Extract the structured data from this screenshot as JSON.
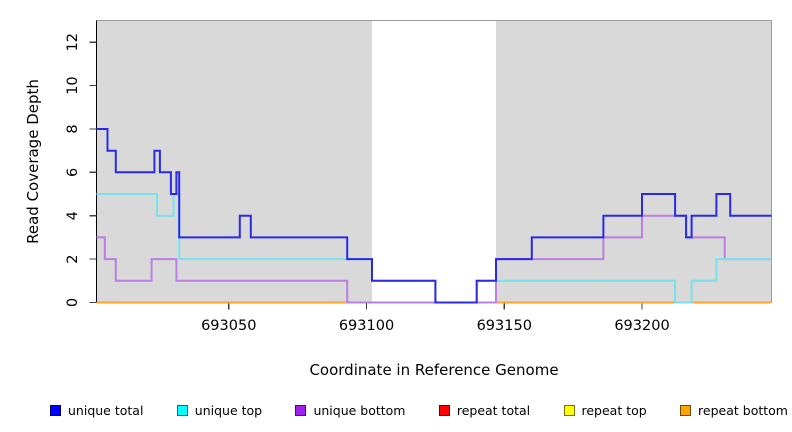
{
  "figure": {
    "title": "",
    "x_axis_label": "Coordinate in Reference Genome",
    "y_axis_label": "Read Coverage Depth"
  },
  "chart_data": {
    "type": "line",
    "subtype": "step",
    "title": "",
    "xlabel": "Coordinate in Reference Genome",
    "ylabel": "Read Coverage Depth",
    "xlim": [
      693002,
      693247
    ],
    "ylim": [
      0,
      13
    ],
    "xticks": [
      693050,
      693100,
      693150,
      693200
    ],
    "yticks": [
      0,
      2,
      4,
      6,
      8,
      10,
      12
    ],
    "grid": false,
    "legend_position": "bottom",
    "plot_background": "#ffffff",
    "shaded_band_color": "#d9d9d9",
    "frame_color": "#9c9c9c",
    "axis_color": "#000000",
    "tick_color": "#404040",
    "text_color": "#000000",
    "shaded_bands": [
      {
        "from": 693002,
        "to": 693102
      },
      {
        "from": 693147,
        "to": 693247
      }
    ],
    "masked_region": {
      "from": 693102,
      "to": 693147
    },
    "draw_sequence": [
      "repeat total",
      "repeat top",
      "repeat bottom",
      "unique bottom",
      "unique top",
      "unique total"
    ],
    "series": [
      {
        "name": "unique total",
        "legend_color": "#0000ff",
        "line_color": "#2a2ae6",
        "segments": [
          [
            [
              693002,
              8
            ],
            [
              693006,
              7
            ],
            [
              693009,
              6
            ],
            [
              693023,
              7
            ],
            [
              693025,
              6
            ],
            [
              693029,
              5
            ],
            [
              693031,
              6
            ],
            [
              693032,
              3
            ],
            [
              693054,
              4
            ],
            [
              693058,
              3
            ],
            [
              693093,
              2
            ],
            [
              693102,
              1
            ],
            [
              693125,
              0
            ],
            [
              693140,
              1
            ],
            [
              693147,
              2
            ],
            [
              693160,
              3
            ],
            [
              693186,
              4
            ],
            [
              693200,
              5
            ],
            [
              693212,
              4
            ],
            [
              693216,
              3
            ],
            [
              693218,
              4
            ],
            [
              693227,
              5
            ],
            [
              693232,
              4
            ],
            [
              693247,
              4
            ]
          ]
        ]
      },
      {
        "name": "unique top",
        "legend_color": "#00ffff",
        "line_color": "#78e1e9",
        "segments": [
          [
            [
              693002,
              5
            ],
            [
              693024,
              4
            ],
            [
              693030,
              5
            ],
            [
              693032,
              2
            ],
            [
              693102,
              1
            ],
            [
              693125,
              0
            ],
            [
              693140,
              1
            ],
            [
              693212,
              0
            ],
            [
              693218,
              1
            ],
            [
              693227,
              2
            ],
            [
              693247,
              2
            ]
          ]
        ]
      },
      {
        "name": "unique bottom",
        "legend_color": "#a020f0",
        "line_color": "#bb7ee2",
        "segments": [
          [
            [
              693002,
              3
            ],
            [
              693005,
              2
            ],
            [
              693009,
              1
            ],
            [
              693022,
              2
            ],
            [
              693031,
              1
            ],
            [
              693093,
              0
            ],
            [
              693147,
              2
            ],
            [
              693186,
              3
            ],
            [
              693200,
              4
            ],
            [
              693216,
              3
            ],
            [
              693230,
              2
            ],
            [
              693247,
              2
            ]
          ]
        ]
      },
      {
        "name": "repeat total",
        "legend_color": "#ff0000",
        "line_color": "#e03636",
        "segments": [
          [
            [
              693002,
              0
            ],
            [
              693102,
              0
            ]
          ],
          [
            [
              693147,
              0
            ],
            [
              693247,
              0
            ]
          ]
        ]
      },
      {
        "name": "repeat top",
        "legend_color": "#ffff00",
        "line_color": "#f2f23a",
        "segments": [
          [
            [
              693002,
              0
            ],
            [
              693102,
              0
            ]
          ],
          [
            [
              693147,
              0
            ],
            [
              693247,
              0
            ]
          ]
        ]
      },
      {
        "name": "repeat bottom",
        "legend_color": "#ffa500",
        "line_color": "#ffa426",
        "segments": [
          [
            [
              693002,
              0
            ],
            [
              693102,
              0
            ]
          ],
          [
            [
              693147,
              0
            ],
            [
              693247,
              0
            ]
          ]
        ]
      }
    ]
  },
  "legend": {
    "items": [
      {
        "label": "unique total",
        "color": "#0000ff"
      },
      {
        "label": "unique top",
        "color": "#00ffff"
      },
      {
        "label": "unique bottom",
        "color": "#a020f0"
      },
      {
        "label": "repeat total",
        "color": "#ff0000"
      },
      {
        "label": "repeat top",
        "color": "#ffff00"
      },
      {
        "label": "repeat bottom",
        "color": "#ffa500"
      }
    ]
  }
}
